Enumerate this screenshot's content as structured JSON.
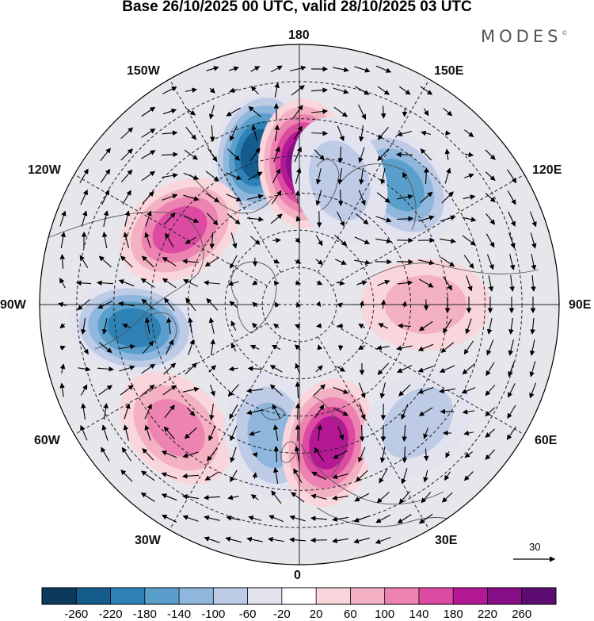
{
  "title": "Base 26/10/2025 00 UTC, valid 28/10/2025 03 UTC",
  "brand": {
    "name": "MODES",
    "mark": "©"
  },
  "map": {
    "projection": "north polar stereographic",
    "longitude_labels": {
      "top": "180",
      "bottom": "0",
      "left": "90W",
      "right": "90E",
      "upper_left_1": "150W",
      "upper_left_2": "120W",
      "upper_right_1": "150E",
      "upper_right_2": "120E",
      "lower_left_1": "60W",
      "lower_left_2": "30W",
      "lower_right_1": "60E",
      "lower_right_2": "30E"
    },
    "reference_vector": "30"
  },
  "colorbar": {
    "ticks": [
      "-260",
      "-220",
      "-180",
      "-140",
      "-100",
      "-60",
      "-20",
      "20",
      "60",
      "100",
      "140",
      "180",
      "220",
      "260"
    ],
    "colors": [
      "#0c3a5c",
      "#135c8c",
      "#2f82b6",
      "#5a9fcb",
      "#8fb6dc",
      "#bdcbe6",
      "#e3e3f0",
      "#ffffff",
      "#f8d6dc",
      "#f3b1c3",
      "#ec83b0",
      "#dc4aa2",
      "#b51895",
      "#870e86",
      "#5c0c72"
    ]
  },
  "anomalies": [
    {
      "label": "north-pacific-low",
      "lon": -165,
      "lat": 48,
      "value": -240
    },
    {
      "label": "bering-high",
      "lon": 178,
      "lat": 52,
      "value": 220
    },
    {
      "label": "alaska-canada-high",
      "lon": -122,
      "lat": 52,
      "value": 170
    },
    {
      "label": "hudson-labrador-low",
      "lon": -82,
      "lat": 45,
      "value": -200
    },
    {
      "label": "atlantic-high",
      "lon": -45,
      "lat": 43,
      "value": 110
    },
    {
      "label": "north-atlantic-low",
      "lon": -12,
      "lat": 54,
      "value": -120
    },
    {
      "label": "europe-high",
      "lon": 12,
      "lat": 52,
      "value": 190
    },
    {
      "label": "east-asia-low",
      "lon": 140,
      "lat": 48,
      "value": -150
    },
    {
      "label": "siberia-high",
      "lon": 90,
      "lat": 56,
      "value": 70
    },
    {
      "label": "central-asia-low",
      "lon": 45,
      "lat": 45,
      "value": -70
    },
    {
      "label": "kamchatka-low",
      "lon": 162,
      "lat": 55,
      "value": -90
    }
  ]
}
